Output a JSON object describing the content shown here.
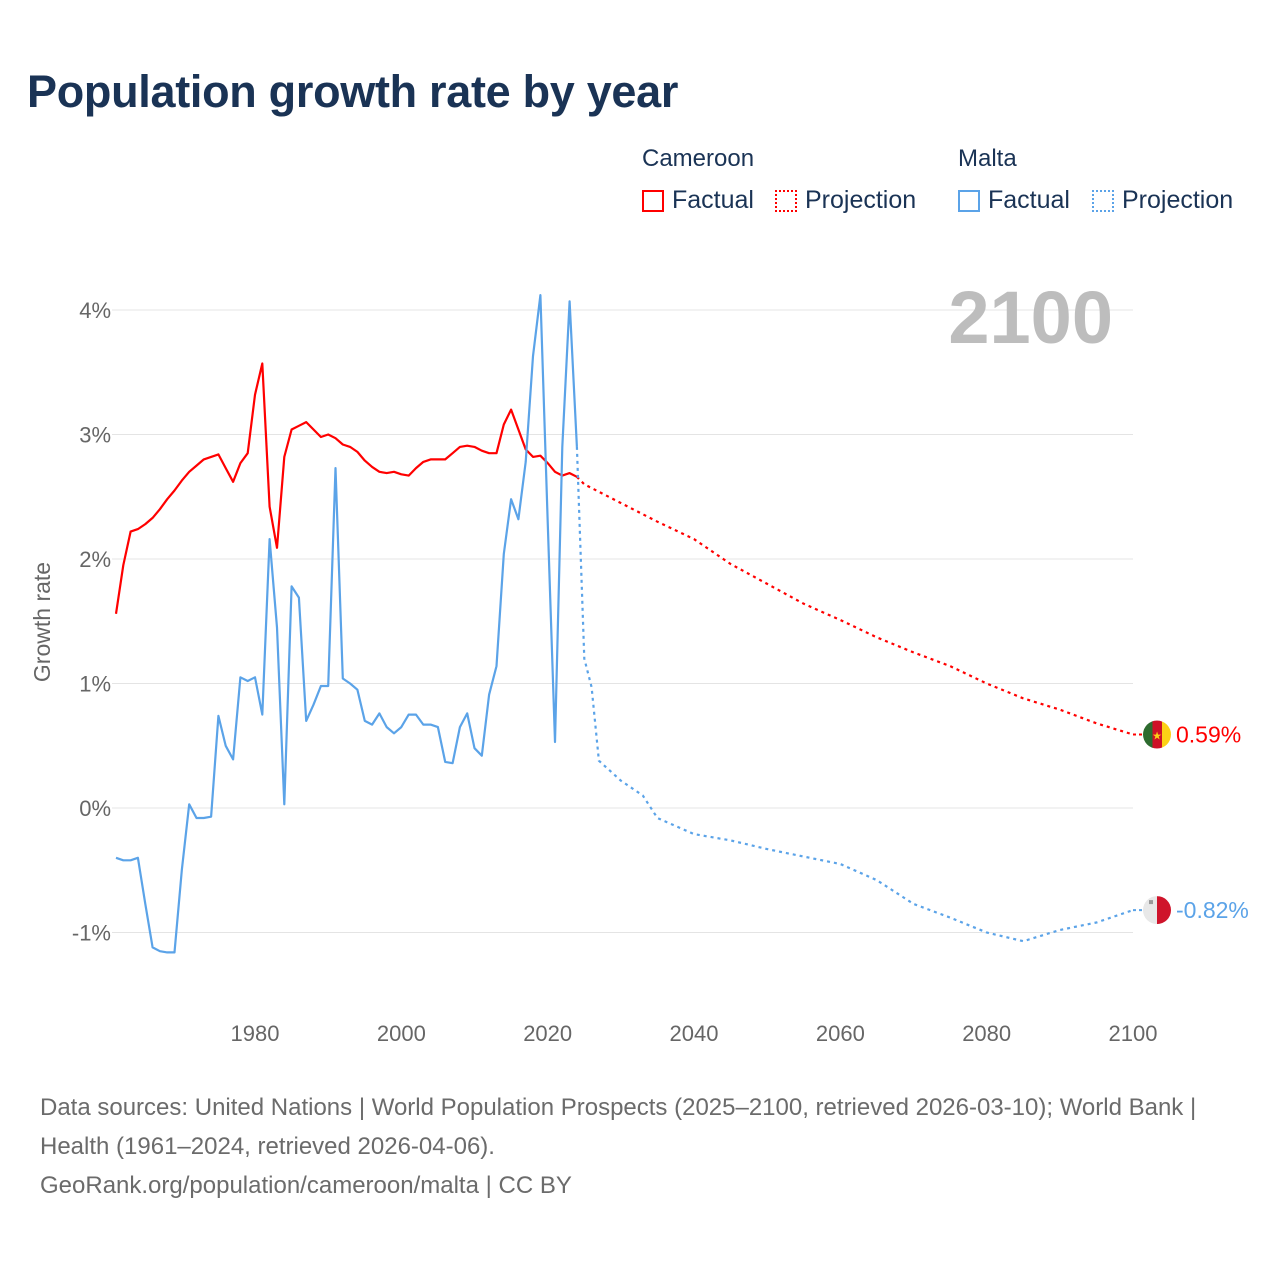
{
  "title": "Population growth rate by year",
  "legend": {
    "groups": [
      {
        "name": "Cameroon",
        "factual": "Factual",
        "projection": "Projection",
        "color": "#ff0000"
      },
      {
        "name": "Malta",
        "factual": "Factual",
        "projection": "Projection",
        "color": "#5ba3e8"
      }
    ]
  },
  "year_display": "2100",
  "footer": {
    "line1": "Data sources: United Nations | World Population Prospects (2025–2100, retrieved 2026-03-10); World Bank | Health (1961–2024, retrieved 2026-04-06).",
    "line2": "GeoRank.org/population/cameroon/malta | CC BY"
  },
  "chart_data": {
    "type": "line",
    "title": "Population growth rate by year",
    "xlabel": "",
    "ylabel": "Growth rate",
    "xlim": [
      1961,
      2100
    ],
    "ylim": [
      -1.6,
      4.2
    ],
    "x_ticks": [
      1980,
      2000,
      2020,
      2040,
      2060,
      2080,
      2100
    ],
    "x_tick_labels": [
      "1980",
      "2000",
      "2020",
      "2040",
      "2060",
      "2080",
      "2100"
    ],
    "y_ticks": [
      -1,
      0,
      1,
      2,
      3,
      4
    ],
    "y_tick_labels": [
      "-1%",
      "0%",
      "1%",
      "2%",
      "3%",
      "4%"
    ],
    "grid": true,
    "legend_position": "top-right",
    "series": [
      {
        "name": "Cameroon",
        "color": "#ff0000",
        "end_label": "0.59%",
        "factual": {
          "x": [
            1961,
            1962,
            1963,
            1964,
            1965,
            1966,
            1967,
            1968,
            1969,
            1970,
            1971,
            1972,
            1973,
            1974,
            1975,
            1976,
            1977,
            1978,
            1979,
            1980,
            1981,
            1982,
            1983,
            1984,
            1985,
            1986,
            1987,
            1988,
            1989,
            1990,
            1991,
            1992,
            1993,
            1994,
            1995,
            1996,
            1997,
            1998,
            1999,
            2000,
            2001,
            2002,
            2003,
            2004,
            2005,
            2006,
            2007,
            2008,
            2009,
            2010,
            2011,
            2012,
            2013,
            2014,
            2015,
            2016,
            2017,
            2018,
            2019,
            2020,
            2021,
            2022,
            2023,
            2024
          ],
          "y": [
            1.56,
            1.95,
            2.22,
            2.24,
            2.28,
            2.33,
            2.4,
            2.48,
            2.55,
            2.63,
            2.7,
            2.75,
            2.8,
            2.82,
            2.84,
            2.73,
            2.62,
            2.77,
            2.85,
            3.32,
            3.57,
            2.42,
            2.09,
            2.82,
            3.04,
            3.07,
            3.1,
            3.04,
            2.98,
            3.0,
            2.97,
            2.92,
            2.9,
            2.86,
            2.79,
            2.74,
            2.7,
            2.69,
            2.7,
            2.68,
            2.67,
            2.73,
            2.78,
            2.8,
            2.8,
            2.8,
            2.85,
            2.9,
            2.91,
            2.9,
            2.87,
            2.85,
            2.85,
            3.08,
            3.2,
            3.04,
            2.88,
            2.82,
            2.83,
            2.77,
            2.7,
            2.67,
            2.69,
            2.66
          ]
        },
        "projection": {
          "x": [
            2024,
            2025,
            2030,
            2035,
            2040,
            2045,
            2050,
            2055,
            2060,
            2065,
            2070,
            2075,
            2080,
            2085,
            2090,
            2095,
            2100
          ],
          "y": [
            2.66,
            2.6,
            2.45,
            2.3,
            2.16,
            1.96,
            1.8,
            1.64,
            1.51,
            1.37,
            1.25,
            1.14,
            1.0,
            0.88,
            0.79,
            0.68,
            0.59
          ]
        }
      },
      {
        "name": "Malta",
        "color": "#5ba3e8",
        "end_label": "-0.82%",
        "factual": {
          "x": [
            1961,
            1962,
            1963,
            1964,
            1965,
            1966,
            1967,
            1968,
            1969,
            1970,
            1971,
            1972,
            1973,
            1974,
            1975,
            1976,
            1977,
            1978,
            1979,
            1980,
            1981,
            1982,
            1983,
            1984,
            1985,
            1986,
            1987,
            1988,
            1989,
            1990,
            1991,
            1992,
            1993,
            1994,
            1995,
            1996,
            1997,
            1998,
            1999,
            2000,
            2001,
            2002,
            2003,
            2004,
            2005,
            2006,
            2007,
            2008,
            2009,
            2010,
            2011,
            2012,
            2013,
            2014,
            2015,
            2016,
            2017,
            2018,
            2019,
            2020,
            2021,
            2022,
            2023,
            2024
          ],
          "y": [
            -0.4,
            -0.42,
            -0.42,
            -0.4,
            -0.77,
            -1.12,
            -1.15,
            -1.16,
            -1.16,
            -0.5,
            0.03,
            -0.08,
            -0.08,
            -0.07,
            0.74,
            0.5,
            0.39,
            1.05,
            1.02,
            1.05,
            0.75,
            2.16,
            1.45,
            0.03,
            1.78,
            1.69,
            0.7,
            0.83,
            0.98,
            0.98,
            2.73,
            1.04,
            1.0,
            0.95,
            0.7,
            0.67,
            0.76,
            0.65,
            0.6,
            0.65,
            0.75,
            0.75,
            0.67,
            0.67,
            0.65,
            0.37,
            0.36,
            0.65,
            0.76,
            0.48,
            0.42,
            0.91,
            1.14,
            2.04,
            2.48,
            2.32,
            2.78,
            3.63,
            4.12,
            2.3,
            0.53,
            2.9,
            4.07,
            2.9
          ]
        },
        "projection": {
          "x": [
            2024,
            2025,
            2026,
            2027,
            2030,
            2033,
            2035,
            2040,
            2045,
            2050,
            2055,
            2060,
            2065,
            2070,
            2075,
            2080,
            2085,
            2090,
            2095,
            2100
          ],
          "y": [
            2.9,
            1.2,
            0.97,
            0.38,
            0.22,
            0.1,
            -0.08,
            -0.21,
            -0.26,
            -0.33,
            -0.39,
            -0.45,
            -0.58,
            -0.77,
            -0.88,
            -1.0,
            -1.07,
            -0.98,
            -0.92,
            -0.82
          ]
        }
      }
    ]
  }
}
